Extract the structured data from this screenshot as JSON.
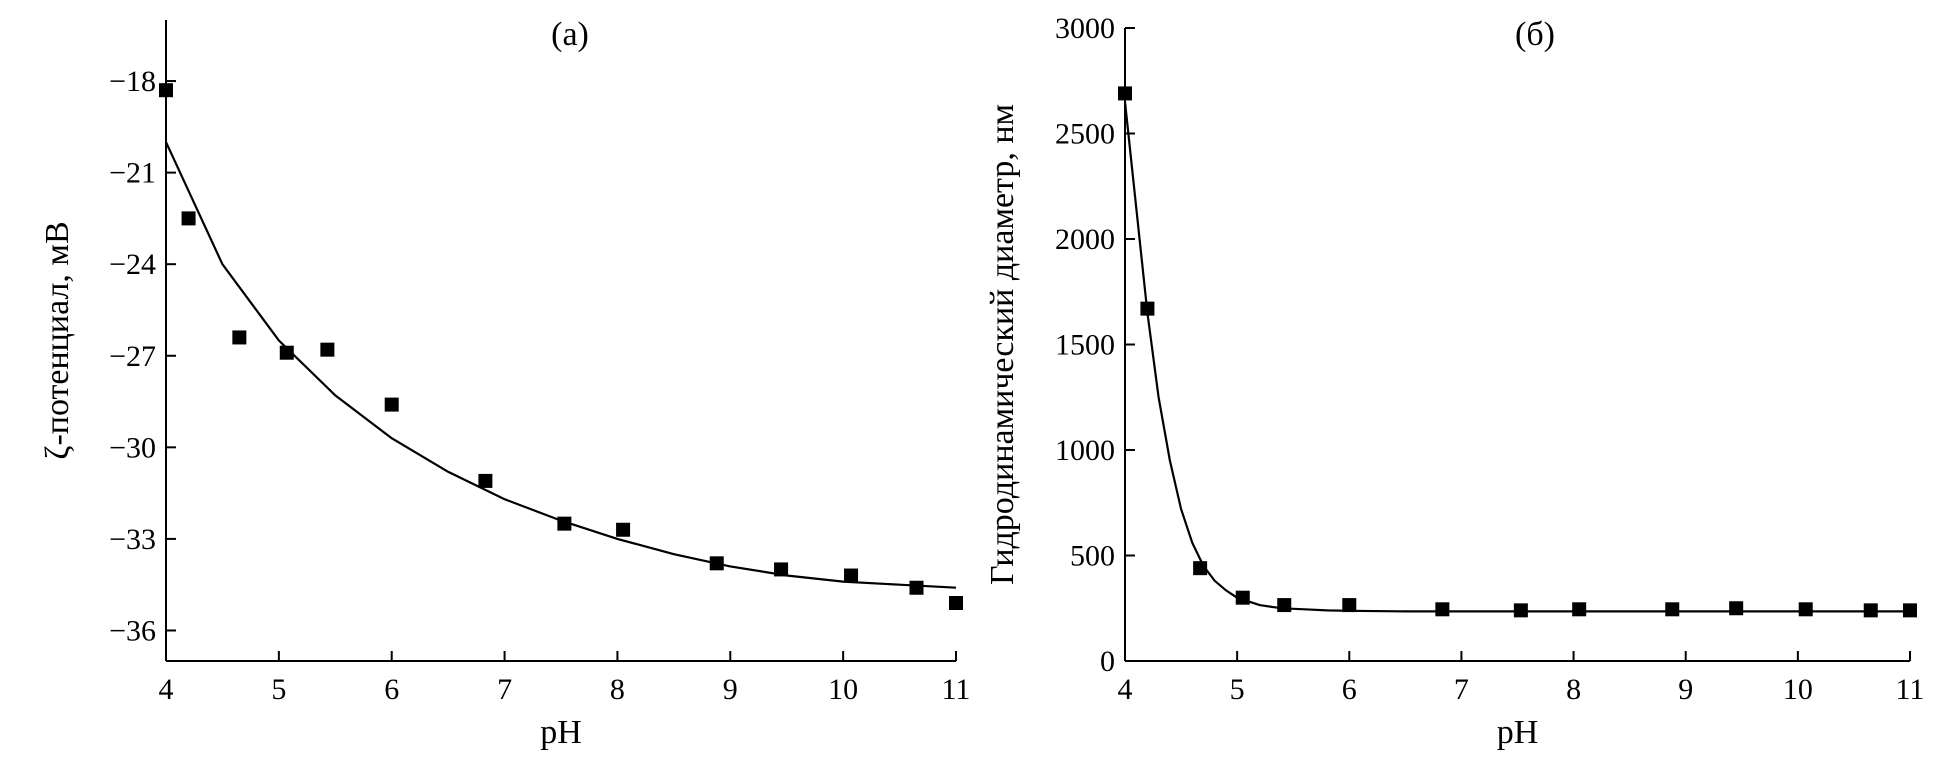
{
  "chart_data": [
    {
      "type": "scatter",
      "panel_label": "(а)",
      "xlabel": "pH",
      "ylabel": "ζ-потенциал, мВ",
      "xlim": [
        4,
        11
      ],
      "ylim": [
        -37,
        -16
      ],
      "x_ticks": [
        4,
        5,
        6,
        7,
        8,
        9,
        10,
        11
      ],
      "x_tick_labels": [
        "4",
        "5",
        "6",
        "7",
        "8",
        "9",
        "10",
        "11"
      ],
      "y_ticks": [
        -18,
        -21,
        -24,
        -27,
        -30,
        -33,
        -36
      ],
      "y_tick_labels": [
        "−18",
        "−21",
        "−24",
        "−27",
        "−30",
        "−33",
        "−36"
      ],
      "points": {
        "x": [
          4.0,
          4.2,
          4.65,
          5.07,
          5.43,
          6.0,
          6.83,
          7.53,
          8.05,
          8.88,
          9.45,
          10.07,
          10.65,
          11.0
        ],
        "y": [
          -18.3,
          -22.5,
          -26.4,
          -26.9,
          -26.8,
          -28.6,
          -31.1,
          -32.5,
          -32.7,
          -33.8,
          -34.0,
          -34.2,
          -34.6,
          -35.1
        ]
      },
      "fit_curve": {
        "x": [
          4.0,
          4.5,
          5.0,
          5.5,
          6.0,
          6.5,
          7.0,
          7.5,
          8.0,
          8.5,
          9.0,
          9.5,
          10.0,
          10.5,
          11.0
        ],
        "y": [
          -20.0,
          -24.0,
          -26.5,
          -28.3,
          -29.7,
          -30.8,
          -31.7,
          -32.4,
          -33.0,
          -33.5,
          -33.9,
          -34.2,
          -34.4,
          -34.5,
          -34.6
        ]
      },
      "grid": false
    },
    {
      "type": "scatter",
      "panel_label": "(б)",
      "xlabel": "pH",
      "ylabel": "Гидродинамический диаметр, нм",
      "xlim": [
        4,
        11
      ],
      "ylim": [
        0,
        3000
      ],
      "x_ticks": [
        4,
        5,
        6,
        7,
        8,
        9,
        10,
        11
      ],
      "x_tick_labels": [
        "4",
        "5",
        "6",
        "7",
        "8",
        "9",
        "10",
        "11"
      ],
      "y_ticks": [
        0,
        500,
        1000,
        1500,
        2000,
        2500,
        3000
      ],
      "y_tick_labels": [
        "0",
        "500",
        "1000",
        "1500",
        "2000",
        "2500",
        "3000"
      ],
      "points": {
        "x": [
          4.0,
          4.2,
          4.67,
          5.05,
          5.42,
          6.0,
          6.83,
          7.53,
          8.05,
          8.88,
          9.45,
          10.07,
          10.65,
          11.0
        ],
        "y": [
          2690,
          1670,
          440,
          300,
          265,
          265,
          245,
          240,
          245,
          245,
          250,
          245,
          240,
          240
        ]
      },
      "fit_curve": {
        "x": [
          4.0,
          4.1,
          4.2,
          4.3,
          4.4,
          4.5,
          4.6,
          4.7,
          4.8,
          4.9,
          5.0,
          5.2,
          5.4,
          5.6,
          5.8,
          6.0,
          6.5,
          7.0,
          8.0,
          9.0,
          10.0,
          11.0
        ],
        "y": [
          2650,
          2150,
          1650,
          1250,
          950,
          720,
          560,
          450,
          380,
          335,
          300,
          265,
          250,
          245,
          240,
          238,
          235,
          235,
          235,
          235,
          235,
          235
        ]
      },
      "grid": false
    }
  ]
}
